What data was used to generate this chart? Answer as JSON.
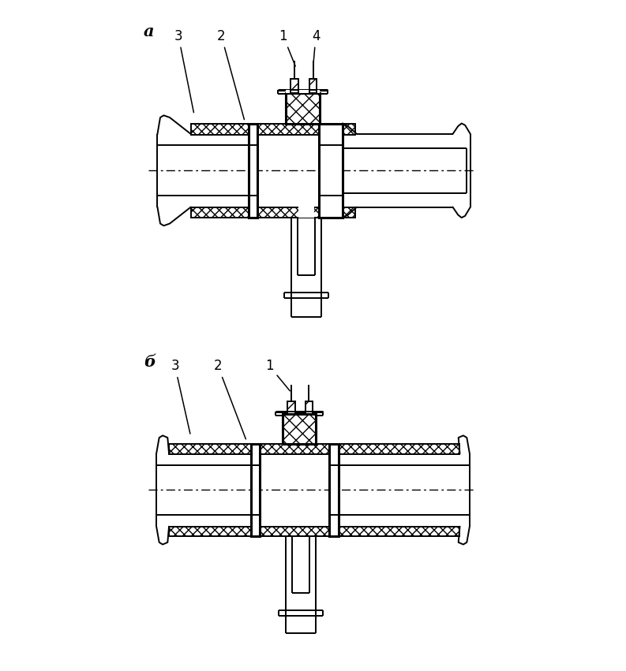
{
  "fig_width": 7.93,
  "fig_height": 8.51,
  "dpi": 100,
  "bg_color": "#ffffff",
  "lw": 1.4,
  "lw_thick": 2.2,
  "label_a": "a",
  "label_b": "б"
}
